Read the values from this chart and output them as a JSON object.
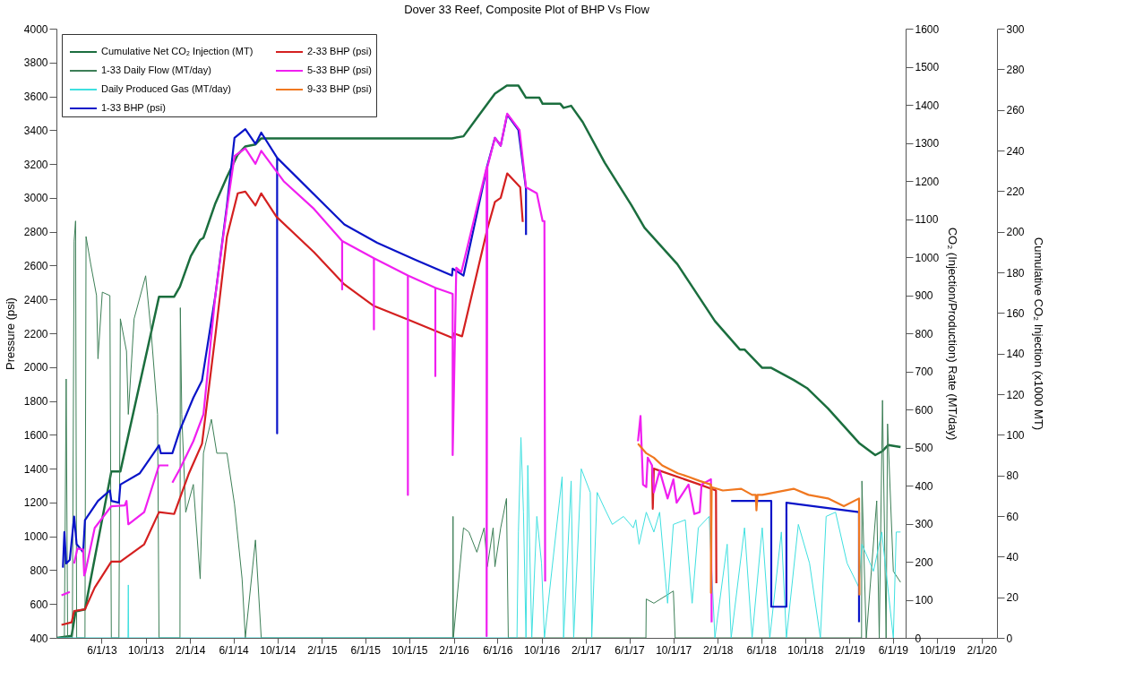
{
  "chart_data": {
    "type": "line",
    "title": "Dover 33 Reef, Composite Plot of BHP Vs Flow",
    "ylabel": "Pressure (psi)",
    "y2label": "CO₂ (Injection/Production) Rate (MT/day)",
    "y3label": "Cumulative CO₂ Injection (x1000 MT)",
    "xlim": [
      "2013-01-27",
      "2020-03-15"
    ],
    "xticks": [
      {
        "value": "2013-06-01",
        "label": "6/1/13"
      },
      {
        "value": "2013-10-01",
        "label": "10/1/13"
      },
      {
        "value": "2014-02-01",
        "label": "2/1/14"
      },
      {
        "value": "2014-06-01",
        "label": "6/1/14"
      },
      {
        "value": "2014-10-01",
        "label": "10/1/14"
      },
      {
        "value": "2015-02-01",
        "label": "2/1/15"
      },
      {
        "value": "2015-06-01",
        "label": "6/1/15"
      },
      {
        "value": "2015-10-01",
        "label": "10/1/15"
      },
      {
        "value": "2016-02-01",
        "label": "2/1/16"
      },
      {
        "value": "2016-06-01",
        "label": "6/1/16"
      },
      {
        "value": "2016-10-01",
        "label": "10/1/16"
      },
      {
        "value": "2017-02-01",
        "label": "2/1/17"
      },
      {
        "value": "2017-06-01",
        "label": "6/1/17"
      },
      {
        "value": "2017-10-01",
        "label": "10/1/17"
      },
      {
        "value": "2018-02-01",
        "label": "2/1/18"
      },
      {
        "value": "2018-06-01",
        "label": "6/1/18"
      },
      {
        "value": "2018-10-01",
        "label": "10/1/18"
      },
      {
        "value": "2019-02-01",
        "label": "2/1/19"
      },
      {
        "value": "2019-06-01",
        "label": "6/1/19"
      },
      {
        "value": "2019-10-01",
        "label": "10/1/19"
      },
      {
        "value": "2020-02-01",
        "label": "2/1/20"
      }
    ],
    "ylim": [
      400,
      4000
    ],
    "yticks": [
      400,
      600,
      800,
      1000,
      1200,
      1400,
      1600,
      1800,
      2000,
      2200,
      2400,
      2600,
      2800,
      3000,
      3200,
      3400,
      3600,
      3800,
      4000
    ],
    "y2lim": [
      0,
      1600
    ],
    "y2ticks": [
      0,
      100,
      200,
      300,
      400,
      500,
      600,
      700,
      800,
      900,
      1000,
      1100,
      1200,
      1300,
      1400,
      1500,
      1600
    ],
    "y3lim": [
      0,
      300
    ],
    "y3ticks": [
      0,
      20,
      40,
      60,
      80,
      100,
      120,
      140,
      160,
      180,
      200,
      220,
      240,
      260,
      280,
      300
    ],
    "legend": "top left",
    "grid": false,
    "series": [
      {
        "name": "Cumulative Net CO₂ Injection (MT)",
        "color": "#1b6e3e",
        "axis": "y3",
        "x": [
          "2013-01-29",
          "2013-03-10",
          "2013-03-21",
          "2013-04-16",
          "2013-06-28",
          "2013-07-23",
          "2013-11-07",
          "2013-12-19",
          "2014-01-04",
          "2014-02-03",
          "2014-03-01",
          "2014-03-10",
          "2014-04-12",
          "2014-05-14",
          "2014-06-13",
          "2014-07-04",
          "2014-08-01",
          "2014-08-17",
          "2016-01-27",
          "2016-02-28",
          "2016-04-05",
          "2016-05-25",
          "2016-06-27",
          "2016-07-29",
          "2016-08-19",
          "2016-09-25",
          "2016-10-04",
          "2016-11-22",
          "2016-12-01",
          "2016-12-22",
          "2017-01-23",
          "2017-03-25",
          "2017-06-07",
          "2017-07-13",
          "2017-10-12",
          "2017-11-22",
          "2018-01-24",
          "2018-04-03",
          "2018-04-16",
          "2018-06-04",
          "2018-06-29",
          "2018-08-30",
          "2018-10-06",
          "2018-12-03",
          "2019-02-27",
          "2019-04-13",
          "2019-05-03",
          "2019-05-19",
          "2019-06-22"
        ],
        "values": [
          0,
          1,
          13,
          14,
          82,
          82,
          168,
          168,
          173,
          188,
          196,
          197,
          214,
          227,
          238,
          242,
          243,
          246,
          246,
          247,
          256,
          268,
          272,
          272,
          266,
          266,
          263,
          263,
          261,
          262,
          254,
          234,
          213,
          202,
          184,
          173,
          156,
          142,
          142,
          133,
          133,
          127,
          123,
          113,
          96,
          90,
          92,
          95,
          94
        ]
      },
      {
        "name": "1-33 Daily Flow (MT/day)",
        "color": "#3d7f57",
        "axis": "y2",
        "x": [
          "2013-01-29",
          "2013-02-18",
          "2013-02-23",
          "2013-02-27",
          "2013-03-12",
          "2013-03-17",
          "2013-03-21",
          "2013-03-24",
          "2013-04-16",
          "2013-04-19",
          "2013-05-02",
          "2013-05-18",
          "2013-05-22",
          "2013-06-03",
          "2013-06-24",
          "2013-06-28",
          "2013-07-19",
          "2013-07-23",
          "2013-08-09",
          "2013-08-14",
          "2013-08-30",
          "2013-10-01",
          "2013-10-17",
          "2013-11-03",
          "2013-11-07",
          "2014-01-04",
          "2014-01-05",
          "2014-01-09",
          "2014-01-20",
          "2014-02-10",
          "2014-03-01",
          "2014-03-10",
          "2014-04-01",
          "2014-04-16",
          "2014-05-14",
          "2014-06-04",
          "2014-06-25",
          "2014-07-04",
          "2014-08-01",
          "2014-08-17",
          "2016-01-29",
          "2016-01-30",
          "2016-01-31",
          "2016-02-28",
          "2016-03-14",
          "2016-04-05",
          "2016-04-25",
          "2016-05-04",
          "2016-05-20",
          "2016-05-25",
          "2016-06-10",
          "2016-06-26",
          "2016-07-01",
          "2017-07-17",
          "2017-07-18",
          "2017-08-08",
          "2017-10-01",
          "2017-10-06",
          "2019-03-06",
          "2019-03-07",
          "2019-03-19",
          "2019-04-17",
          "2019-04-24",
          "2019-05-03",
          "2019-05-13",
          "2019-05-17",
          "2019-06-02",
          "2019-06-22"
        ],
        "values": [
          0,
          0,
          680,
          0,
          0,
          1042,
          1095,
          0,
          0,
          1054,
          981,
          899,
          733,
          908,
          899,
          0,
          0,
          838,
          753,
          587,
          838,
          951,
          794,
          587,
          0,
          0,
          867,
          587,
          330,
          403,
          155,
          485,
          574,
          485,
          485,
          351,
          155,
          0,
          257,
          0,
          0,
          319,
          0,
          289,
          278,
          225,
          289,
          187,
          289,
          187,
          289,
          366,
          0,
          0,
          102,
          91,
          123,
          0,
          0,
          412,
          0,
          360,
          0,
          624,
          0,
          562,
          175,
          146
        ]
      },
      {
        "name": "Daily Produced Gas (MT/day)",
        "color": "#3fe0e0",
        "axis": "y2",
        "x": [
          "2013-01-29",
          "2013-08-13",
          "2013-08-14",
          "2013-08-15",
          "2016-07-25",
          "2016-07-29",
          "2016-08-05",
          "2016-08-12",
          "2016-08-19",
          "2016-08-24",
          "2016-09-04",
          "2016-09-18",
          "2016-10-01",
          "2016-10-09",
          "2016-11-27",
          "2016-12-01",
          "2016-12-22",
          "2016-12-29",
          "2017-01-19",
          "2017-02-13",
          "2017-02-17",
          "2017-03-04",
          "2017-03-25",
          "2017-04-15",
          "2017-05-16",
          "2017-06-12",
          "2017-06-19",
          "2017-06-28",
          "2017-07-18",
          "2017-08-08",
          "2017-08-24",
          "2017-09-15",
          "2017-10-01",
          "2017-11-03",
          "2017-11-22",
          "2017-12-09",
          "2018-01-08",
          "2018-01-24",
          "2018-02-27",
          "2018-03-10",
          "2018-04-16",
          "2018-05-07",
          "2018-06-04",
          "2018-06-25",
          "2018-07-27",
          "2018-08-10",
          "2018-09-12",
          "2018-10-13",
          "2018-11-12",
          "2018-11-28",
          "2018-12-24",
          "2019-01-25",
          "2019-02-27",
          "2019-03-07",
          "2019-04-08",
          "2019-05-01",
          "2019-06-02",
          "2019-06-10",
          "2019-06-22"
        ],
        "values": [
          0,
          0,
          139,
          0,
          0,
          278,
          526,
          330,
          0,
          453,
          0,
          319,
          196,
          0,
          423,
          0,
          412,
          0,
          444,
          382,
          0,
          382,
          339,
          298,
          319,
          289,
          310,
          246,
          330,
          278,
          330,
          91,
          298,
          310,
          91,
          289,
          319,
          0,
          246,
          0,
          289,
          0,
          289,
          0,
          278,
          0,
          298,
          196,
          0,
          319,
          330,
          196,
          132,
          246,
          175,
          278,
          0,
          278,
          278
        ]
      },
      {
        "name": "1-33 BHP (psi)",
        "color": "#0a14c8",
        "axis": "y",
        "x": [
          "2013-02-14",
          "2013-02-18",
          "2013-02-23",
          "2013-03-05",
          "2013-03-17",
          "2013-03-24",
          "2013-04-11",
          "2013-04-16",
          "2013-05-22",
          "2013-06-24",
          "2013-06-28",
          "2013-07-19",
          "2013-07-23",
          "2013-09-15",
          "2013-11-07",
          "2013-11-12",
          "2013-12-14",
          "2014-01-04",
          "2014-02-10",
          "2014-03-06",
          "2014-04-12",
          "2014-05-14",
          "2014-06-04",
          "2014-07-04",
          "2014-08-01",
          "2014-08-17",
          "2014-09-30",
          "2014-09-30",
          "2014-09-30",
          "2015-04-04",
          "2015-07-04",
          "2015-10-19",
          "2016-01-27",
          "2016-01-29",
          "2016-02-28",
          "2016-05-04",
          "2016-05-25",
          "2016-06-10",
          "2016-06-28",
          "2016-07-29",
          "2016-08-19",
          "2016-08-19",
          "2017-01-01",
          "2018-03-10",
          "2018-06-29",
          "2018-06-29",
          "2018-08-10",
          "2018-08-10",
          "2019-02-27",
          "2019-02-27"
        ],
        "values": [
          815,
          1025,
          840,
          861,
          1117,
          953,
          907,
          1096,
          1209,
          1271,
          1209,
          1199,
          1306,
          1373,
          1537,
          1491,
          1491,
          1629,
          1819,
          1921,
          2423,
          2955,
          3355,
          3406,
          3319,
          3386,
          3237,
          1609,
          3237,
          2843,
          2735,
          2633,
          2541,
          2582,
          2541,
          3191,
          3355,
          3309,
          3493,
          3401,
          3053,
          2781,
          null,
          1209,
          1209,
          584,
          584,
          1199,
          1143,
          492
        ]
      },
      {
        "name": "2-33 BHP (psi)",
        "color": "#d42020",
        "axis": "y",
        "x": [
          "2013-02-10",
          "2013-03-10",
          "2013-03-17",
          "2013-04-16",
          "2013-05-13",
          "2013-06-28",
          "2013-07-23",
          "2013-09-27",
          "2013-11-07",
          "2013-12-19",
          "2014-01-29",
          "2014-03-06",
          "2014-04-12",
          "2014-05-14",
          "2014-06-13",
          "2014-07-04",
          "2014-08-01",
          "2014-08-17",
          "2014-09-28",
          "2015-01-10",
          "2015-04-04",
          "2015-06-25",
          "2015-09-29",
          "2016-01-29",
          "2016-01-31",
          "2016-02-24",
          "2016-05-04",
          "2016-05-25",
          "2016-06-10",
          "2016-06-28",
          "2016-08-03",
          "2016-08-10",
          "2017-01-01",
          "2017-08-03",
          "2017-08-05",
          "2017-08-08",
          "2017-12-13",
          "2018-01-27",
          "2018-01-28"
        ],
        "values": [
          477,
          492,
          559,
          569,
          697,
          851,
          851,
          953,
          1143,
          1132,
          1373,
          1547,
          2187,
          2771,
          3027,
          3037,
          2955,
          3027,
          2889,
          2679,
          2489,
          2361,
          2279,
          2172,
          2200,
          2182,
          2817,
          2976,
          3000,
          3145,
          3063,
          2858,
          null,
          1419,
          1163,
          1400,
          1306,
          1271,
          723
        ]
      },
      {
        "name": "5-33 BHP (psi)",
        "color": "#f01ff0",
        "axis": "y",
        "x": [
          "2013-02-10",
          "2013-03-05",
          "2013-03-06",
          "2013-03-17",
          "2013-03-26",
          "2013-04-11",
          "2013-04-14",
          "2013-04-15",
          "2013-04-16",
          "2013-05-13",
          "2013-06-28",
          "2013-08-04",
          "2013-08-09",
          "2013-08-14",
          "2013-09-27",
          "2013-11-07",
          "2013-12-03",
          "2013-12-08",
          "2013-12-14",
          "2014-01-04",
          "2014-02-10",
          "2014-03-10",
          "2014-04-12",
          "2014-05-14",
          "2014-06-04",
          "2014-07-04",
          "2014-08-01",
          "2014-08-17",
          "2014-10-18",
          "2015-01-10",
          "2015-03-29",
          "2015-03-29",
          "2015-03-29",
          "2015-06-25",
          "2015-06-25",
          "2015-06-25",
          "2015-09-27",
          "2015-09-27",
          "2015-09-27",
          "2015-12-12",
          "2015-12-12",
          "2015-12-12",
          "2016-01-29",
          "2016-01-29",
          "2016-02-08",
          "2016-02-22",
          "2016-05-02",
          "2016-05-02",
          "2016-05-04",
          "2016-05-25",
          "2016-06-10",
          "2016-06-28",
          "2016-08-01",
          "2016-08-19",
          "2016-09-18",
          "2016-10-04",
          "2016-10-09",
          "2016-10-11",
          "2017-01-01",
          "2017-06-25",
          "2017-07-02",
          "2017-07-09",
          "2017-07-18",
          "2017-07-22",
          "2017-08-03",
          "2017-08-08",
          "2017-08-24",
          "2017-09-15",
          "2017-10-01",
          "2017-10-10",
          "2017-11-12",
          "2017-11-28",
          "2017-12-13",
          "2017-12-18",
          "2018-01-13",
          "2018-01-15"
        ],
        "values": [
          651,
          671,
          null,
          840,
          927,
          922,
          764,
          null,
          779,
          1050,
          1178,
          1183,
          1209,
          1071,
          1143,
          1419,
          1419,
          null,
          1317,
          1399,
          1562,
          1721,
          2423,
          2935,
          3247,
          3293,
          3201,
          3278,
          3099,
          2935,
          2745,
          2459,
          2745,
          2643,
          2223,
          2643,
          2541,
          1245,
          2541,
          2469,
          1947,
          2469,
          2433,
          1480,
          2587,
          2561,
          3181,
          410,
          3181,
          3355,
          3309,
          3498,
          3401,
          3063,
          3027,
          2863,
          2863,
          733,
          null,
          1562,
          1711,
          1306,
          1291,
          1465,
          1419,
          1260,
          1388,
          1224,
          1337,
          1199,
          1306,
          1132,
          1143,
          1306,
          1337,
          492
        ]
      },
      {
        "name": "9-33 BHP (psi)",
        "color": "#f07820",
        "axis": "y",
        "x": [
          "2017-06-25",
          "2017-07-18",
          "2017-08-08",
          "2017-08-31",
          "2017-10-13",
          "2017-11-12",
          "2017-12-13",
          "2018-01-13",
          "2018-01-13",
          "2018-01-15",
          "2018-02-15",
          "2018-04-07",
          "2018-05-07",
          "2018-05-17",
          "2018-05-19",
          "2018-05-22",
          "2018-06-04",
          "2018-08-30",
          "2018-10-10",
          "2018-12-03",
          "2019-01-16",
          "2019-02-27",
          "2019-02-28"
        ],
        "values": [
          1547,
          1491,
          1465,
          1419,
          1373,
          1352,
          1327,
          1306,
          666,
          1291,
          1271,
          1281,
          1245,
          1245,
          1153,
          1245,
          1245,
          1281,
          1245,
          1224,
          1178,
          1224,
          651
        ]
      }
    ]
  }
}
